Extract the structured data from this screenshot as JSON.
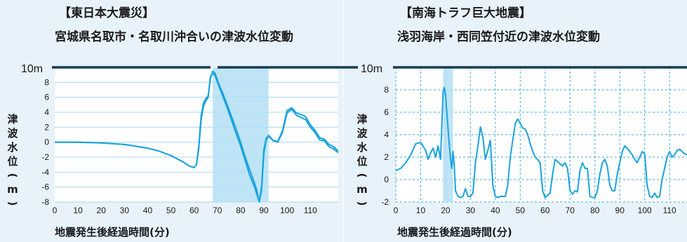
{
  "chart_data": [
    {
      "type": "line",
      "title_line1": "【東日本大震災】",
      "title_line2": "宮城県名取市・名取川沖合いの津波水位変動",
      "xlabel": "地震発生後経過時間(分)",
      "ylabel_chars": [
        "津",
        "波",
        "水",
        "位",
        "(",
        "m",
        ")"
      ],
      "ten_m_label": "10m",
      "y_ticks": [
        "8",
        "6",
        "4",
        "2",
        "0",
        "-2",
        "-4",
        "-6",
        "-8"
      ],
      "x_ticks": [
        "0",
        "10",
        "20",
        "30",
        "40",
        "50",
        "60",
        "70",
        "80",
        "90",
        "100",
        "110"
      ],
      "xlim": [
        0,
        122
      ],
      "ylim": [
        -8,
        10
      ],
      "highlight_band": [
        68,
        92
      ],
      "grid_style": "solid",
      "series": [
        {
          "x": [
            0,
            5,
            10,
            20,
            30,
            40,
            45,
            50,
            55,
            58,
            60,
            61,
            62,
            63,
            64,
            65,
            66,
            67,
            68,
            69,
            70,
            71,
            72,
            74,
            76,
            78,
            80,
            82,
            84,
            86,
            87,
            88,
            89,
            90,
            91,
            92,
            93,
            94,
            96,
            98,
            100,
            102,
            104,
            106,
            108,
            110,
            112,
            114,
            116,
            118,
            120,
            122
          ],
          "y": [
            0,
            0,
            0,
            -0.1,
            -0.3,
            -0.8,
            -1.2,
            -1.8,
            -2.6,
            -3.2,
            -3.4,
            -3.0,
            -0.5,
            3.5,
            5.2,
            5.8,
            6.2,
            8.5,
            9.5,
            9.2,
            8.3,
            7.5,
            6.8,
            5.2,
            3.5,
            1.8,
            0,
            -2,
            -3.8,
            -5.5,
            -6.5,
            -8,
            -6,
            -1,
            0.5,
            0.9,
            0.6,
            0.2,
            0.1,
            1.5,
            4.2,
            4.6,
            3.9,
            3.7,
            3.4,
            2.3,
            1.6,
            0.6,
            0.4,
            -0.3,
            -0.6,
            -1.2
          ]
        },
        {
          "x": [
            0,
            5,
            10,
            20,
            30,
            40,
            45,
            50,
            55,
            58,
            60,
            61,
            62,
            63,
            64,
            65,
            66,
            67,
            68,
            69,
            70,
            71,
            72,
            74,
            76,
            78,
            80,
            82,
            84,
            86,
            87,
            88,
            89,
            90,
            91,
            92,
            93,
            94,
            96,
            98,
            100,
            102,
            104,
            106,
            108,
            110,
            112,
            114,
            116,
            118,
            120,
            122
          ],
          "y": [
            0,
            0,
            0,
            -0.1,
            -0.3,
            -0.8,
            -1.2,
            -1.8,
            -2.6,
            -3.2,
            -3.4,
            -3.0,
            -0.8,
            3.0,
            4.8,
            5.5,
            6.0,
            8.8,
            9.2,
            8.9,
            8.0,
            7.2,
            6.4,
            4.8,
            3.0,
            1.2,
            -0.5,
            -2.5,
            -4.5,
            -6,
            -7,
            -8,
            -6.5,
            -1.5,
            0.3,
            0.8,
            0.5,
            0.2,
            0.0,
            1.3,
            3.9,
            4.4,
            3.6,
            3.3,
            3.0,
            2.0,
            1.3,
            0.3,
            0.2,
            -0.6,
            -0.9,
            -1.4
          ]
        }
      ]
    },
    {
      "type": "line",
      "title_line1": "【南海トラフ巨大地震】",
      "title_line2": "浅羽海岸・西同笠付近の津波水位変動",
      "xlabel": "地震発生後経過時間(分)",
      "ylabel_chars": [
        "津",
        "波",
        "水",
        "位",
        "(",
        "m",
        ")"
      ],
      "ten_m_label": "10m",
      "y_ticks": [
        "8",
        "6",
        "4",
        "2",
        "0",
        "-2"
      ],
      "x_ticks": [
        "0",
        "10",
        "20",
        "30",
        "40",
        "50",
        "60",
        "70",
        "80",
        "90",
        "100",
        "110"
      ],
      "xlim": [
        0,
        117
      ],
      "ylim": [
        -2,
        10
      ],
      "highlight_band": [
        19,
        23
      ],
      "grid_style": "dashed",
      "series": [
        {
          "x": [
            0,
            2,
            4,
            6,
            8,
            10,
            12,
            13,
            14,
            15,
            16,
            17,
            18,
            19,
            19.5,
            20,
            21,
            22,
            22.5,
            23,
            23.5,
            24,
            25,
            26,
            27,
            28,
            29,
            30,
            31,
            32,
            33,
            34,
            35,
            36,
            37,
            38,
            39,
            40,
            41,
            42,
            43,
            44,
            45,
            46,
            47,
            48,
            49,
            50,
            51,
            52,
            53,
            54,
            55,
            56,
            57,
            58,
            59,
            60,
            61,
            62,
            63,
            64,
            65,
            66,
            67,
            68,
            69,
            70,
            71,
            72,
            73,
            74,
            75,
            76,
            77,
            78,
            79,
            80,
            81,
            82,
            83,
            84,
            85,
            86,
            87,
            88,
            89,
            90,
            91,
            92,
            93,
            94,
            95,
            96,
            97,
            98,
            99,
            100,
            101,
            102,
            103,
            104,
            105,
            106,
            107,
            108,
            109,
            110,
            111,
            112,
            113,
            114,
            115,
            116,
            117
          ],
          "y": [
            0.8,
            1.0,
            1.5,
            2.2,
            3.2,
            3.3,
            2.6,
            1.8,
            2.4,
            2.8,
            2.0,
            3.0,
            1.8,
            7.8,
            8.2,
            7.5,
            4.5,
            1.8,
            1.0,
            2.5,
            1.2,
            -1.0,
            -1.5,
            -1.6,
            -1.5,
            -0.8,
            -1.5,
            -1.5,
            -1.2,
            1.5,
            3.0,
            4.7,
            3.8,
            1.8,
            2.6,
            3.5,
            -0.5,
            -1.5,
            -1.6,
            -1.5,
            -1.5,
            -1.5,
            -0.5,
            2.0,
            3.5,
            5.0,
            5.4,
            5.0,
            4.6,
            4.5,
            4.0,
            3.2,
            2.5,
            2.0,
            1.8,
            1.5,
            -1.0,
            -1.6,
            -1.4,
            -1.2,
            0.5,
            1.8,
            1.6,
            1.4,
            1.2,
            1.5,
            1.0,
            -1.0,
            -1.3,
            -1.0,
            -1.1,
            0.8,
            1.5,
            1.0,
            1.0,
            -1.5,
            -1.6,
            -1.6,
            -1.0,
            0.5,
            1.5,
            1.8,
            1.2,
            -0.5,
            -1.0,
            -1.0,
            0.5,
            1.5,
            2.5,
            3.0,
            2.8,
            2.5,
            2.2,
            1.8,
            1.5,
            2.0,
            2.5,
            2.3,
            -0.5,
            -1.5,
            -1.6,
            -1.2,
            -1.6,
            -1.5,
            0.0,
            1.0,
            2.0,
            2.5,
            2.0,
            2.2,
            2.6,
            2.7,
            2.5,
            2.3,
            2.2
          ]
        }
      ]
    }
  ]
}
